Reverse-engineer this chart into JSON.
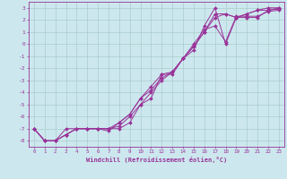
{
  "xlabel": "Windchill (Refroidissement éolien,°C)",
  "bg_color": "#cce8ee",
  "line_color": "#993399",
  "grid_color": "#aacccc",
  "spine_color": "#993399",
  "xlim": [
    -0.5,
    23.5
  ],
  "ylim": [
    -8.5,
    3.5
  ],
  "yticks": [
    -8,
    -7,
    -6,
    -5,
    -4,
    -3,
    -2,
    -1,
    0,
    1,
    2,
    3
  ],
  "xticks": [
    0,
    1,
    2,
    3,
    4,
    5,
    6,
    7,
    8,
    9,
    10,
    11,
    12,
    13,
    14,
    15,
    16,
    17,
    18,
    19,
    20,
    21,
    22,
    23
  ],
  "lines": [
    {
      "x": [
        0,
        1,
        2,
        3,
        4,
        5,
        6,
        7,
        8,
        9,
        10,
        11,
        12,
        13,
        14,
        15,
        16,
        17,
        18,
        19,
        20,
        21,
        22,
        23
      ],
      "y": [
        -7.0,
        -8.0,
        -8.0,
        -7.5,
        -7.0,
        -7.0,
        -7.0,
        -7.0,
        -7.0,
        -6.5,
        -5.0,
        -4.5,
        -2.5,
        -2.5,
        -1.2,
        -0.5,
        1.5,
        3.0,
        0.0,
        2.2,
        2.2,
        2.2,
        2.8,
        3.0
      ]
    },
    {
      "x": [
        0,
        1,
        2,
        3,
        4,
        5,
        6,
        7,
        8,
        9,
        10,
        11,
        12,
        13,
        14,
        15,
        16,
        17,
        18,
        19,
        20,
        21,
        22,
        23
      ],
      "y": [
        -7.0,
        -8.0,
        -8.0,
        -7.5,
        -7.0,
        -7.0,
        -7.0,
        -7.2,
        -6.5,
        -5.8,
        -4.5,
        -3.8,
        -2.8,
        -2.3,
        -1.2,
        -0.2,
        1.0,
        2.2,
        2.5,
        2.2,
        2.5,
        2.8,
        3.0,
        3.0
      ]
    },
    {
      "x": [
        0,
        1,
        2,
        3,
        4,
        5,
        6,
        7,
        8,
        9,
        10,
        11,
        12,
        13,
        14,
        15,
        16,
        17,
        18,
        19,
        20,
        21,
        22,
        23
      ],
      "y": [
        -7.0,
        -8.0,
        -8.0,
        -7.5,
        -7.0,
        -7.0,
        -7.0,
        -7.0,
        -6.5,
        -5.8,
        -4.5,
        -3.5,
        -2.5,
        -2.3,
        -1.2,
        -0.2,
        1.0,
        2.5,
        2.5,
        2.2,
        2.5,
        2.8,
        2.8,
        2.9
      ]
    },
    {
      "x": [
        0,
        1,
        2,
        3,
        4,
        5,
        6,
        7,
        8,
        9,
        10,
        11,
        12,
        13,
        14,
        15,
        16,
        17,
        18,
        19,
        20,
        21,
        22,
        23
      ],
      "y": [
        -7.0,
        -8.0,
        -8.0,
        -7.0,
        -7.0,
        -7.0,
        -7.0,
        -7.0,
        -6.8,
        -6.0,
        -5.0,
        -4.0,
        -3.0,
        -2.3,
        -1.2,
        0.0,
        1.2,
        1.5,
        0.2,
        2.3,
        2.3,
        2.3,
        2.7,
        2.8
      ]
    }
  ]
}
